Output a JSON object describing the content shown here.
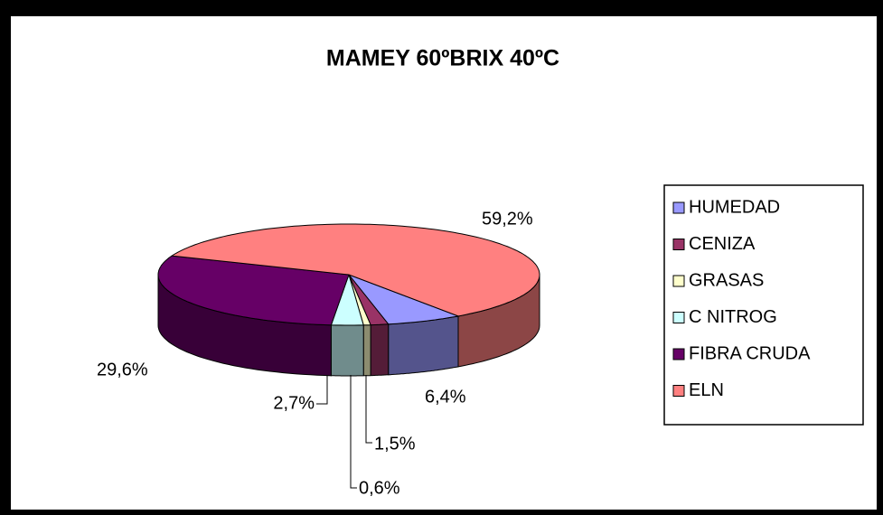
{
  "chart_data": {
    "type": "pie",
    "title": "MAMEY 60ºBRIX 40ºC",
    "categories": [
      "HUMEDAD",
      "CENIZA",
      "GRASAS",
      "C NITROG",
      "FIBRA CRUDA",
      "ELN"
    ],
    "values": [
      6.4,
      1.5,
      0.6,
      2.7,
      29.6,
      59.2
    ],
    "value_labels": [
      "6,4%",
      "1,5%",
      "0,6%",
      "2,7%",
      "29,6%",
      "59,2%"
    ],
    "colors": [
      "#9999ff",
      "#993366",
      "#ffffcc",
      "#ccffff",
      "#660066",
      "#ff8080"
    ],
    "legend": "right"
  }
}
